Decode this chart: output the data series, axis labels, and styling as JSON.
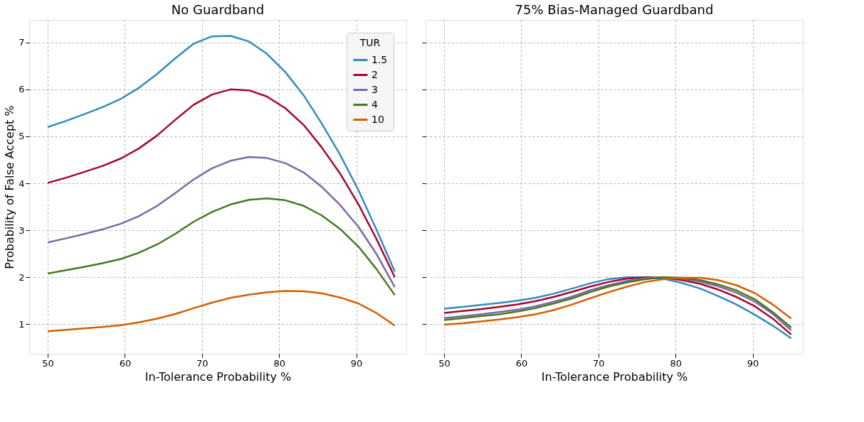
{
  "chart_data": [
    {
      "type": "line",
      "title": "No Guardband",
      "xlabel": "In-Tolerance Probability %",
      "ylabel": "Probability of False Accept %",
      "legend_title": "TUR",
      "legend": "top right",
      "grid": true,
      "marker": "none",
      "line_style": "solid",
      "x": [
        50,
        52.4,
        54.7,
        57.1,
        59.5,
        61.8,
        64.2,
        66.6,
        68.9,
        71.3,
        73.7,
        76.1,
        78.4,
        80.8,
        83.2,
        85.5,
        87.9,
        90.3,
        92.6,
        95
      ],
      "xlim": [
        47.6,
        96.5
      ],
      "xticks": [
        50,
        60,
        70,
        80,
        90
      ],
      "ylim": [
        0.37,
        7.48
      ],
      "yticks": [
        1,
        2,
        3,
        4,
        5,
        6,
        7
      ],
      "series": [
        {
          "name": "1.5",
          "color": "#348abd",
          "values": [
            5.2,
            5.33,
            5.47,
            5.62,
            5.8,
            6.03,
            6.33,
            6.67,
            6.97,
            7.13,
            7.14,
            7.02,
            6.76,
            6.37,
            5.87,
            5.28,
            4.61,
            3.85,
            3.02,
            2.12
          ]
        },
        {
          "name": "2",
          "color": "#a60628",
          "values": [
            4.01,
            4.12,
            4.24,
            4.37,
            4.53,
            4.74,
            5.02,
            5.36,
            5.67,
            5.89,
            6.0,
            5.98,
            5.85,
            5.6,
            5.24,
            4.77,
            4.21,
            3.55,
            2.82,
            2.0
          ]
        },
        {
          "name": "3",
          "color": "#7a68a6",
          "values": [
            2.74,
            2.83,
            2.92,
            3.02,
            3.14,
            3.3,
            3.52,
            3.8,
            4.08,
            4.32,
            4.48,
            4.56,
            4.54,
            4.43,
            4.23,
            3.93,
            3.54,
            3.07,
            2.5,
            1.79
          ]
        },
        {
          "name": "4",
          "color": "#467821",
          "values": [
            2.08,
            2.15,
            2.22,
            2.3,
            2.39,
            2.52,
            2.7,
            2.93,
            3.18,
            3.39,
            3.55,
            3.65,
            3.68,
            3.64,
            3.52,
            3.32,
            3.03,
            2.65,
            2.18,
            1.62
          ]
        },
        {
          "name": "10",
          "color": "#d55e00",
          "values": [
            0.85,
            0.88,
            0.91,
            0.94,
            0.98,
            1.04,
            1.12,
            1.22,
            1.34,
            1.46,
            1.56,
            1.63,
            1.68,
            1.71,
            1.7,
            1.66,
            1.57,
            1.44,
            1.24,
            0.97
          ]
        }
      ]
    },
    {
      "type": "line",
      "title": "75% Bias-Managed Guardband",
      "xlabel": "In-Tolerance Probability %",
      "grid": true,
      "marker": "none",
      "line_style": "solid",
      "tick_labels": "x",
      "x": [
        50,
        52.4,
        54.7,
        57.1,
        59.5,
        61.8,
        64.2,
        66.6,
        68.9,
        71.3,
        73.7,
        76.1,
        78.4,
        80.8,
        83.2,
        85.5,
        87.9,
        90.3,
        92.6,
        95
      ],
      "xlim": [
        47.6,
        96.5
      ],
      "xticks": [
        50,
        60,
        70,
        80,
        90
      ],
      "ylim": [
        0.37,
        7.48
      ],
      "yticks": [
        1,
        2,
        3,
        4,
        5,
        6,
        7
      ],
      "series": [
        {
          "color": "#348abd",
          "values": [
            1.33,
            1.37,
            1.41,
            1.45,
            1.5,
            1.56,
            1.65,
            1.76,
            1.87,
            1.96,
            2.0,
            2.0,
            1.97,
            1.88,
            1.76,
            1.6,
            1.42,
            1.2,
            0.97,
            0.7
          ]
        },
        {
          "color": "#a60628",
          "values": [
            1.24,
            1.28,
            1.32,
            1.37,
            1.42,
            1.49,
            1.58,
            1.69,
            1.8,
            1.9,
            1.97,
            2.0,
            1.99,
            1.94,
            1.86,
            1.74,
            1.58,
            1.38,
            1.12,
            0.78
          ]
        },
        {
          "color": "#7a68a6",
          "values": [
            1.13,
            1.17,
            1.21,
            1.26,
            1.31,
            1.38,
            1.48,
            1.59,
            1.72,
            1.83,
            1.92,
            1.98,
            2.0,
            1.97,
            1.91,
            1.81,
            1.67,
            1.48,
            1.22,
            0.87
          ]
        },
        {
          "color": "#467821",
          "values": [
            1.09,
            1.13,
            1.17,
            1.21,
            1.27,
            1.34,
            1.44,
            1.55,
            1.68,
            1.8,
            1.89,
            1.96,
            2.0,
            1.99,
            1.94,
            1.85,
            1.72,
            1.53,
            1.26,
            0.93
          ]
        },
        {
          "color": "#d55e00",
          "values": [
            0.99,
            1.02,
            1.06,
            1.1,
            1.15,
            1.21,
            1.3,
            1.42,
            1.55,
            1.68,
            1.8,
            1.9,
            1.96,
            1.99,
            1.99,
            1.94,
            1.83,
            1.66,
            1.42,
            1.12
          ]
        }
      ]
    }
  ]
}
